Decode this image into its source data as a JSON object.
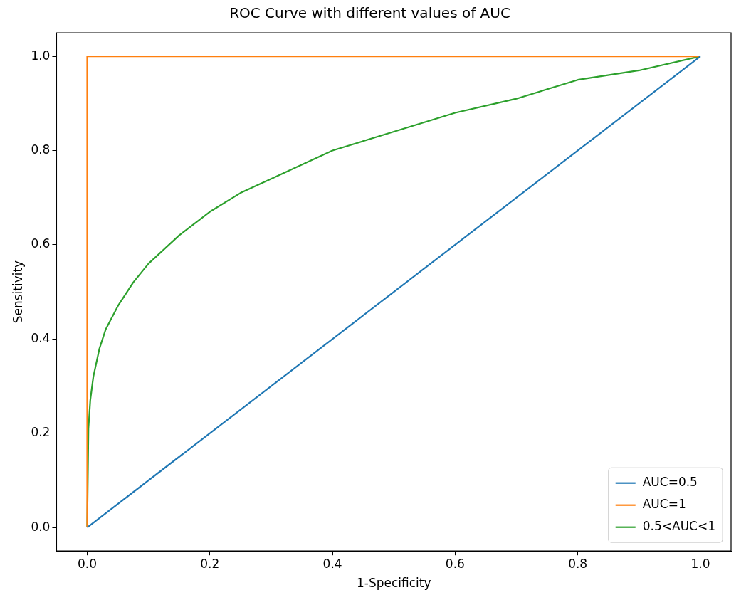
{
  "chart_data": {
    "type": "line",
    "title": "ROC Curve with different values of AUC",
    "xlabel": "1-Specificity",
    "ylabel": "Sensitivity",
    "xlim": [
      -0.05,
      1.05
    ],
    "ylim": [
      -0.05,
      1.05
    ],
    "xticks": [
      {
        "value": 0,
        "label": "0.0"
      },
      {
        "value": 0.2,
        "label": "0.2"
      },
      {
        "value": 0.4,
        "label": "0.4"
      },
      {
        "value": 0.6,
        "label": "0.6"
      },
      {
        "value": 0.8,
        "label": "0.8"
      },
      {
        "value": 1,
        "label": "1.0"
      }
    ],
    "yticks": [
      {
        "value": 0,
        "label": "0.0"
      },
      {
        "value": 0.2,
        "label": "0.2"
      },
      {
        "value": 0.4,
        "label": "0.4"
      },
      {
        "value": 0.6,
        "label": "0.6"
      },
      {
        "value": 0.8,
        "label": "0.8"
      },
      {
        "value": 1,
        "label": "1.0"
      }
    ],
    "grid": false,
    "legend": "bottom right",
    "marker": "none",
    "line_style": "solid",
    "series": [
      {
        "name": "AUC=0.5",
        "color": "#1f77b4",
        "x": [
          0,
          1
        ],
        "values": [
          0,
          1
        ]
      },
      {
        "name": "AUC=1",
        "color": "#ff7f0e",
        "x": [
          0,
          0,
          1
        ],
        "values": [
          0,
          1,
          1
        ]
      },
      {
        "name": "0.5<AUC<1",
        "color": "#2ca02c",
        "x": [
          0,
          0.002,
          0.005,
          0.01,
          0.02,
          0.03,
          0.05,
          0.075,
          0.1,
          0.15,
          0.2,
          0.25,
          0.3,
          0.4,
          0.5,
          0.6,
          0.7,
          0.8,
          0.9,
          1
        ],
        "values": [
          0,
          0.21,
          0.27,
          0.32,
          0.38,
          0.42,
          0.47,
          0.52,
          0.56,
          0.62,
          0.67,
          0.71,
          0.74,
          0.8,
          0.84,
          0.88,
          0.91,
          0.95,
          0.97,
          1
        ]
      }
    ]
  }
}
